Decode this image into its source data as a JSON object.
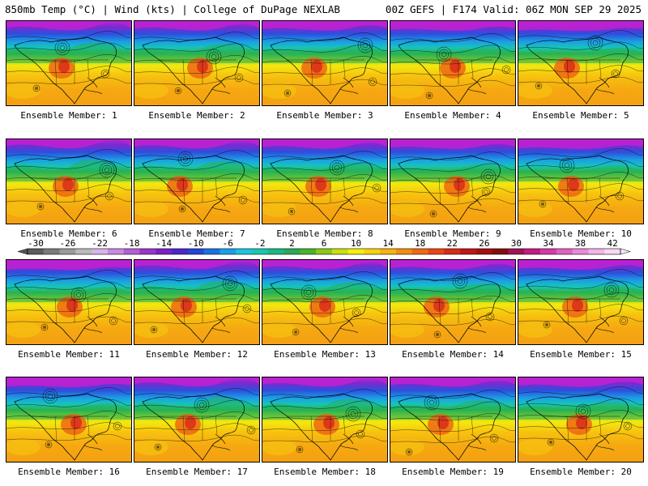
{
  "header": {
    "left": "850mb Temp (°C) | Wind (kts) | College of DuPage NEXLAB",
    "right": "00Z GEFS | F174 Valid: 06Z MON SEP 29 2025"
  },
  "members": [
    {
      "label": "Ensemble Member: 1"
    },
    {
      "label": "Ensemble Member: 2"
    },
    {
      "label": "Ensemble Member: 3"
    },
    {
      "label": "Ensemble Member: 4"
    },
    {
      "label": "Ensemble Member: 5"
    },
    {
      "label": "Ensemble Member: 6"
    },
    {
      "label": "Ensemble Member: 7"
    },
    {
      "label": "Ensemble Member: 8"
    },
    {
      "label": "Ensemble Member: 9"
    },
    {
      "label": "Ensemble Member: 10"
    },
    {
      "label": "Ensemble Member: 11"
    },
    {
      "label": "Ensemble Member: 12"
    },
    {
      "label": "Ensemble Member: 13"
    },
    {
      "label": "Ensemble Member: 14"
    },
    {
      "label": "Ensemble Member: 15"
    },
    {
      "label": "Ensemble Member: 16"
    },
    {
      "label": "Ensemble Member: 17"
    },
    {
      "label": "Ensemble Member: 18"
    },
    {
      "label": "Ensemble Member: 19"
    },
    {
      "label": "Ensemble Member: 20"
    }
  ],
  "colorbar": {
    "ticks": [
      "-30",
      "-26",
      "-22",
      "-18",
      "-14",
      "-10",
      "-6",
      "-2",
      "2",
      "6",
      "10",
      "14",
      "18",
      "22",
      "26",
      "30",
      "34",
      "38",
      "42"
    ],
    "colors": [
      "#5c5c5c",
      "#7a7a7a",
      "#9a9a9a",
      "#bababa",
      "#d9b3e8",
      "#c98ae0",
      "#b15fd6",
      "#9a35cc",
      "#7a22c4",
      "#4b28c8",
      "#2346d6",
      "#1a73e0",
      "#1aa0e8",
      "#19c6e0",
      "#17c9b0",
      "#1ab882",
      "#2aaa55",
      "#48b32a",
      "#8cc81a",
      "#c8df10",
      "#f2f00e",
      "#f7d20f",
      "#f7b20f",
      "#f38d10",
      "#ee6a12",
      "#e84614",
      "#d92a18",
      "#c01616",
      "#a01210",
      "#80100e",
      "#a01456",
      "#c41c82",
      "#d63aa8",
      "#e062c2",
      "#e98ad6",
      "#f2b5e8",
      "#f8d8f2"
    ]
  }
}
